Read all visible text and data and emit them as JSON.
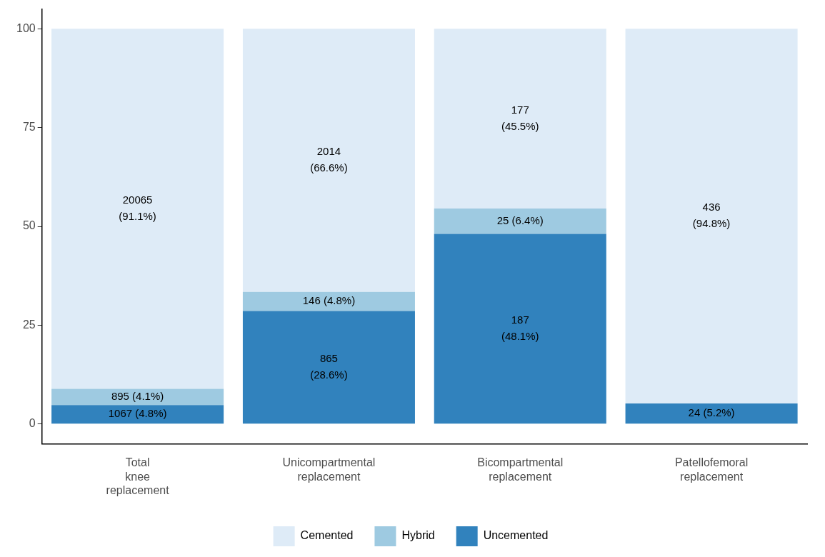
{
  "chart_data": {
    "type": "bar",
    "stacked": true,
    "categories": [
      "Total\nknee\nreplacement",
      "Unicompartmental\nreplacement",
      "Bicompartmental\nreplacement",
      "Patellofemoral\nreplacement"
    ],
    "series": [
      {
        "name": "Uncemented",
        "color": "#3182bd",
        "values": [
          4.8,
          28.6,
          48.1,
          5.2
        ],
        "value_labels": [
          "1067 (4.8%)",
          "865\n(28.6%)",
          "187\n(48.1%)",
          "24 (5.2%)"
        ]
      },
      {
        "name": "Hybrid",
        "color": "#9ecae1",
        "values": [
          4.1,
          4.8,
          6.4,
          0
        ],
        "value_labels": [
          "895 (4.1%)",
          "146 (4.8%)",
          "25 (6.4%)",
          null
        ]
      },
      {
        "name": "Cemented",
        "color": "#deebf7",
        "values": [
          91.1,
          66.6,
          45.5,
          94.8
        ],
        "value_labels": [
          "20065\n(91.1%)",
          "2014\n(66.6%)",
          "177\n(45.5%)",
          "436\n(94.8%)"
        ]
      }
    ],
    "ylim": [
      -5,
      105
    ],
    "yticks": [
      0,
      25,
      50,
      75,
      100
    ],
    "grid": false,
    "legend": "bottom"
  }
}
